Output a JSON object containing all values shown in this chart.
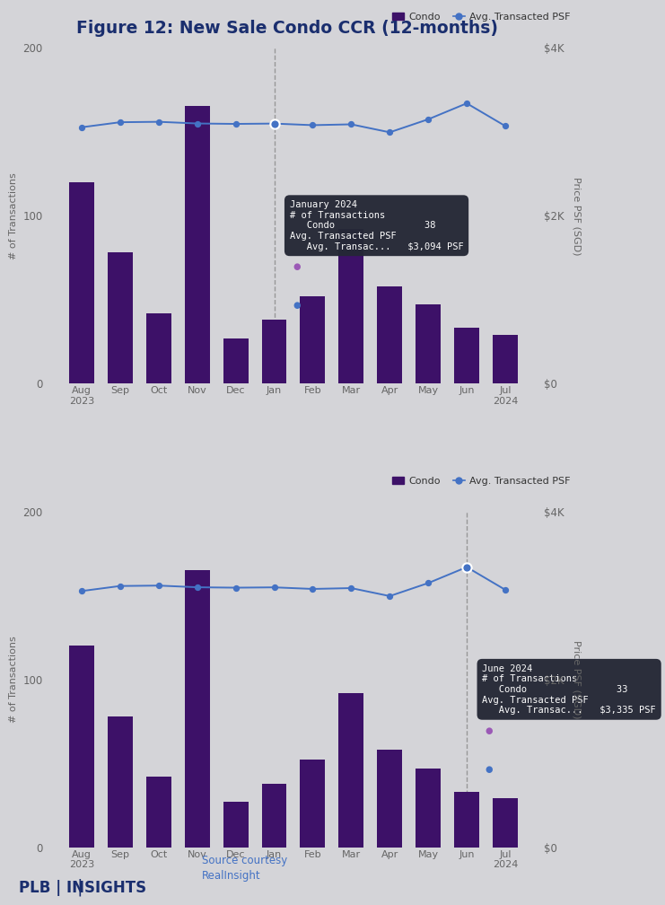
{
  "title": "Figure 12: New Sale Condo CCR (12-months)",
  "background_color": "#d4d4d8",
  "bar_color": "#3d1168",
  "line_color": "#4472c4",
  "months": [
    "Aug\n2023",
    "Sep",
    "Oct",
    "Nov",
    "Dec",
    "Jan",
    "Feb",
    "Mar",
    "Apr",
    "May",
    "Jun",
    "Jul\n2024"
  ],
  "condo_values": [
    120,
    78,
    42,
    165,
    27,
    38,
    52,
    92,
    58,
    47,
    33,
    29
  ],
  "psf_values": [
    3050,
    3110,
    3115,
    3095,
    3090,
    3094,
    3075,
    3085,
    2990,
    3145,
    3335,
    3065
  ],
  "chart1_highlight_idx": 5,
  "chart1_tooltip_title": "January 2024",
  "chart1_condo_val": 38,
  "chart1_psf_val": "$3,094 PSF",
  "chart2_highlight_idx": 10,
  "chart2_tooltip_title": "June 2024",
  "chart2_condo_val": 33,
  "chart2_psf_val": "$3,335 PSF",
  "ylim_bar": [
    0,
    200
  ],
  "ylim_psf": [
    0,
    4000
  ],
  "yticks_bar": [
    0,
    100,
    200
  ],
  "yticks_psf": [
    0,
    2000,
    4000
  ],
  "yticks_psf_labels": [
    "$0",
    "$2K",
    "$4K"
  ],
  "ylabel_left": "# of Transactions",
  "ylabel_right": "Price PSF (SGD)",
  "legend_condo": "Condo",
  "legend_psf": "Avg. Transacted PSF",
  "footer_left": "PLB | INSIGHTS",
  "footer_source": "Source courtesy\nRealInsight",
  "title_color": "#1a2e6e",
  "tick_color": "#666666",
  "tooltip_bg": "#252836",
  "tooltip_text_color": "#ffffff",
  "tooltip_title_color": "#ffffff",
  "tooltip_sub_color": "#aaaaaa"
}
